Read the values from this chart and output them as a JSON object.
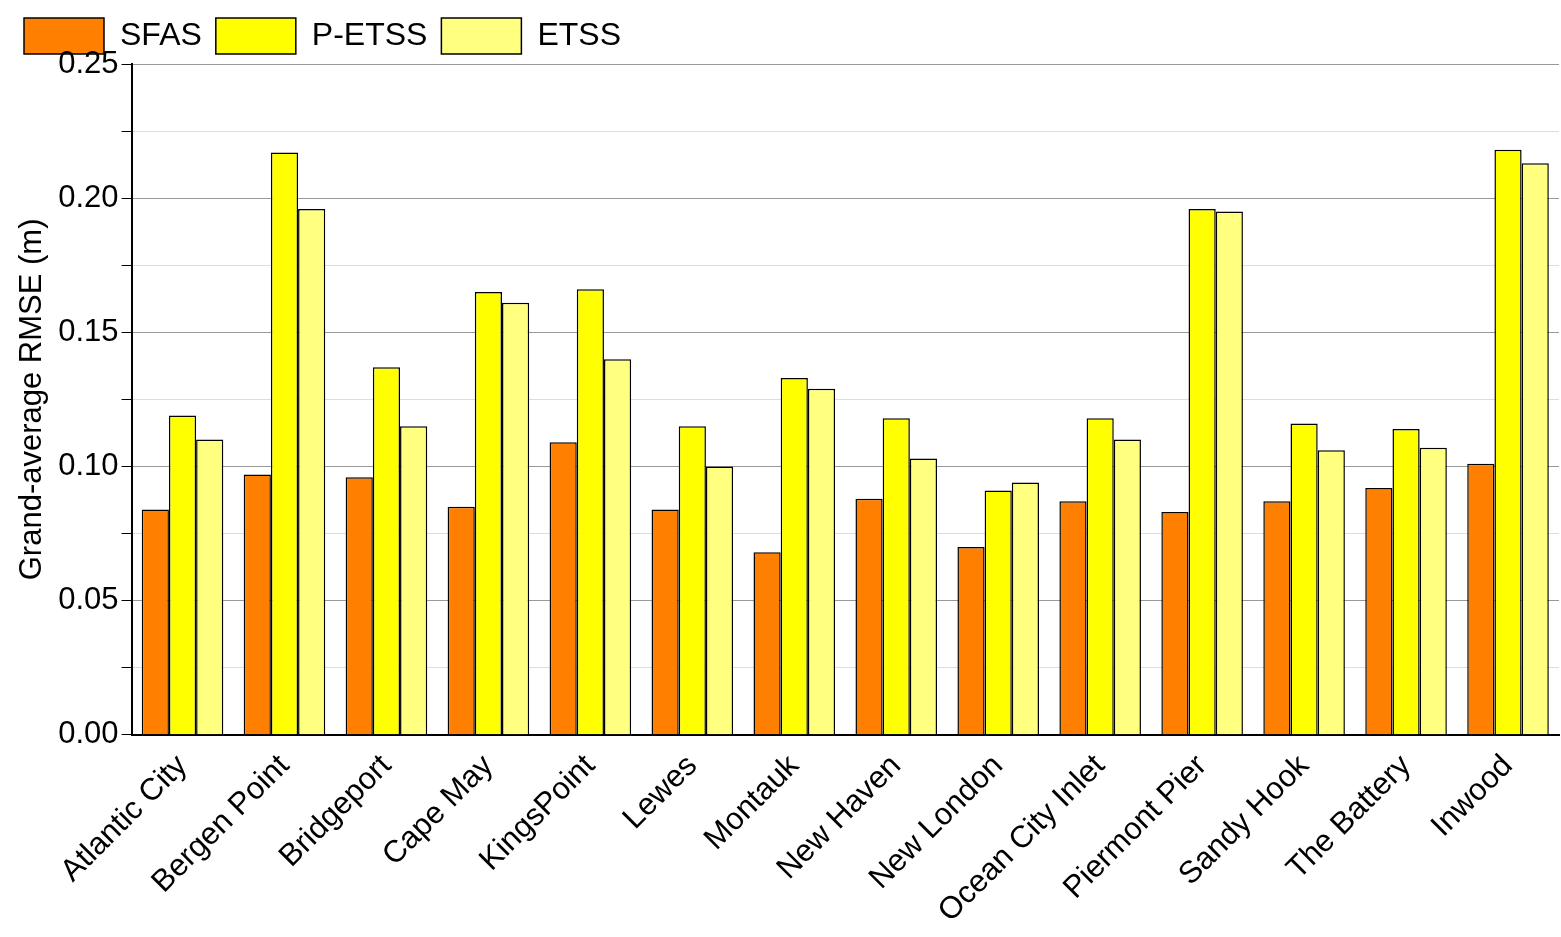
{
  "chart_data": {
    "type": "bar",
    "ylabel": "Grand-average RMSE (m)",
    "categories": [
      "Atlantic City",
      "Bergen Point",
      "Bridgeport",
      "Cape May",
      "KingsPoint",
      "Lewes",
      "Montauk",
      "New Haven",
      "New London",
      "Ocean City Inlet",
      "Piermont Pier",
      "Sandy Hook",
      "The Battery",
      "Inwood"
    ],
    "series": [
      {
        "name": "SFAS",
        "color": "#ff8000",
        "values": [
          0.084,
          0.097,
          0.096,
          0.085,
          0.109,
          0.084,
          0.068,
          0.088,
          0.07,
          0.087,
          0.083,
          0.087,
          0.092,
          0.101
        ]
      },
      {
        "name": "P-ETSS",
        "color": "#ffff00",
        "values": [
          0.119,
          0.217,
          0.137,
          0.165,
          0.166,
          0.115,
          0.133,
          0.118,
          0.091,
          0.118,
          0.196,
          0.116,
          0.114,
          0.218
        ]
      },
      {
        "name": "ETSS",
        "color": "#ffff80",
        "values": [
          0.11,
          0.196,
          0.115,
          0.161,
          0.14,
          0.1,
          0.129,
          0.103,
          0.094,
          0.11,
          0.195,
          0.106,
          0.107,
          0.213
        ]
      }
    ],
    "ylim": [
      0,
      0.25
    ],
    "yticks": [
      "0.00",
      {
        "value": 0.025,
        "label": null
      },
      {
        "value": 0.05,
        "label": "0.05"
      },
      {
        "value": 0.075,
        "label": null
      },
      {
        "value": 0.1,
        "label": "0.10"
      },
      {
        "value": 0.125,
        "label": null
      },
      {
        "value": 0.15,
        "label": "0.15"
      },
      {
        "value": 0.175,
        "label": null
      },
      {
        "value": 0.2,
        "label": "0.20"
      },
      {
        "value": 0.225,
        "label": null
      },
      {
        "value": 0.25,
        "label": "0.25"
      }
    ],
    "grid": "y",
    "legend": "top left"
  }
}
